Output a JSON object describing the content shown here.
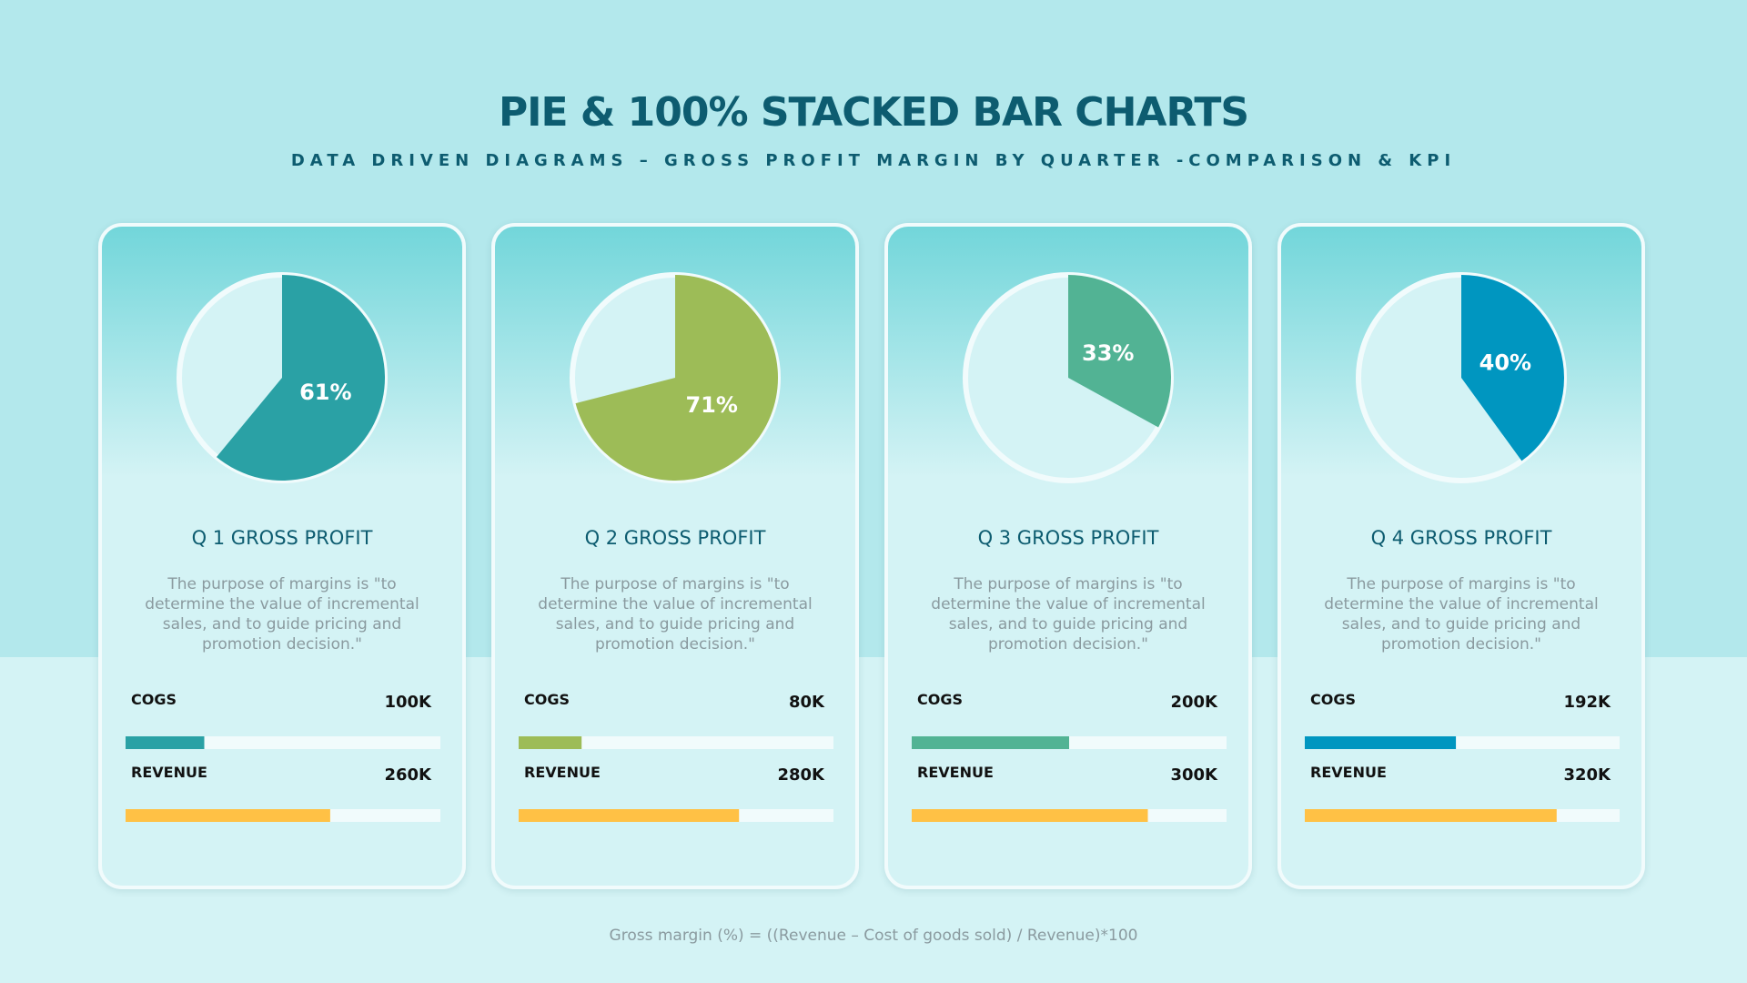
{
  "title": "PIE & 100% STACKED BAR CHARTS",
  "subtitle": "DATA DRIVEN DIAGRAMS – GROSS PROFIT MARGIN BY QUARTER -COMPARISON & KPI",
  "footnote": "Gross margin (%) = ((Revenue – Cost of goods sold) / Revenue)*100",
  "chart_data": [
    {
      "type": "pie",
      "title": "Q 1 GROSS PROFIT",
      "description": "The purpose of margins is \"to determine the value of incremental sales, and to guide pricing and promotion decision.\"",
      "values": [
        61
      ],
      "value_labels": [
        "61%"
      ],
      "color": "#2aa1a5",
      "bars": {
        "type": "bar",
        "categories": [
          "COGS",
          "REVENUE"
        ],
        "values": [
          100000,
          260000
        ],
        "value_labels": [
          "100K",
          "260K"
        ],
        "colors": [
          "#2aa1a5",
          "#ffc145"
        ],
        "xlim": [
          0,
          400000
        ]
      }
    },
    {
      "type": "pie",
      "title": "Q 2 GROSS PROFIT",
      "description": "The purpose of margins is \"to determine the value of incremental sales, and to guide pricing and promotion decision.\"",
      "values": [
        71
      ],
      "value_labels": [
        "71%"
      ],
      "color": "#9dbc57",
      "bars": {
        "type": "bar",
        "categories": [
          "COGS",
          "REVENUE"
        ],
        "values": [
          80000,
          280000
        ],
        "value_labels": [
          "80K",
          "280K"
        ],
        "colors": [
          "#9dbc57",
          "#ffc145"
        ],
        "xlim": [
          0,
          400000
        ]
      }
    },
    {
      "type": "pie",
      "title": "Q 3 GROSS PROFIT",
      "description": "The purpose of margins is \"to determine the value of incremental sales, and to guide pricing and promotion decision.\"",
      "values": [
        33
      ],
      "value_labels": [
        "33%"
      ],
      "color": "#52b394",
      "bars": {
        "type": "bar",
        "categories": [
          "COGS",
          "REVENUE"
        ],
        "values": [
          200000,
          300000
        ],
        "value_labels": [
          "200K",
          "300K"
        ],
        "colors": [
          "#52b394",
          "#ffc145"
        ],
        "xlim": [
          0,
          400000
        ]
      }
    },
    {
      "type": "pie",
      "title": "Q 4 GROSS PROFIT",
      "description": "The purpose of margins is \"to determine the value of incremental sales, and to guide pricing and promotion decision.\"",
      "values": [
        40
      ],
      "value_labels": [
        "40%"
      ],
      "color": "#0096c0",
      "bars": {
        "type": "bar",
        "categories": [
          "COGS",
          "REVENUE"
        ],
        "values": [
          192000,
          320000
        ],
        "value_labels": [
          "192K",
          "320K"
        ],
        "colors": [
          "#0096c0",
          "#ffc145"
        ],
        "xlim": [
          0,
          400000
        ]
      }
    }
  ]
}
